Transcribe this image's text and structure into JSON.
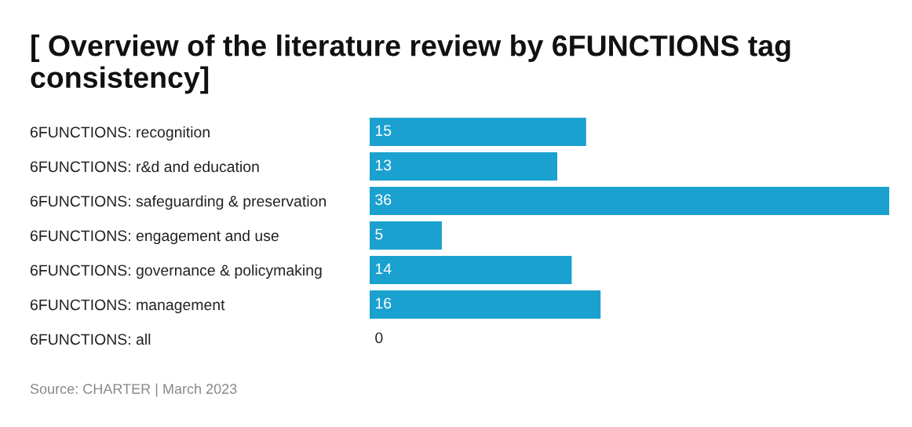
{
  "chart_data": {
    "type": "bar",
    "orientation": "horizontal",
    "title": "[ Overview of the literature review by 6FUNCTIONS tag consistency]",
    "categories": [
      "6FUNCTIONS: recognition",
      "6FUNCTIONS: r&d and education",
      "6FUNCTIONS: safeguarding & preservation",
      "6FUNCTIONS: engagement and use",
      "6FUNCTIONS: governance & policymaking",
      "6FUNCTIONS: management",
      "6FUNCTIONS: all"
    ],
    "values": [
      15,
      13,
      36,
      5,
      14,
      16,
      0
    ],
    "color": "#1ba1cf",
    "data_labels": true,
    "annotations": [
      "Source: CHARTER | March 2023"
    ]
  }
}
